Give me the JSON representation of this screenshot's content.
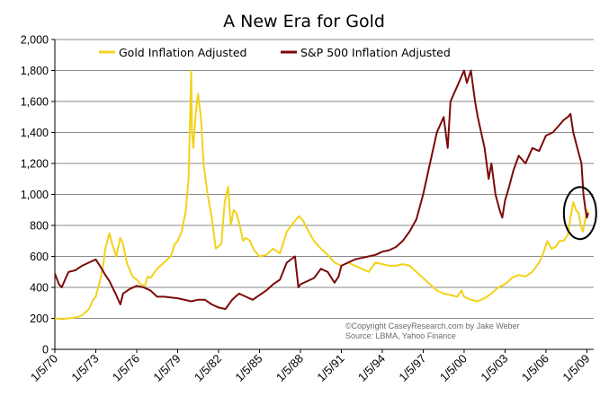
{
  "chart_data": {
    "type": "line",
    "title": "A New Era for Gold",
    "xlabel": "",
    "ylabel": "",
    "ylim": [
      0,
      2000
    ],
    "y_ticks": [
      "0",
      "200",
      "400",
      "600",
      "800",
      "1,000",
      "1,200",
      "1,400",
      "1,600",
      "1,800",
      "2,000"
    ],
    "y_tick_values": [
      0,
      200,
      400,
      600,
      800,
      1000,
      1200,
      1400,
      1600,
      1800,
      2000
    ],
    "xlim": [
      1970.0,
      2009.3
    ],
    "x_ticks": [
      "1/5/70",
      "1/5/73",
      "1/5/76",
      "1/5/79",
      "1/5/82",
      "1/5/85",
      "1/5/88",
      "1/5/91",
      "1/5/94",
      "1/5/97",
      "1/5/00",
      "1/5/03",
      "1/5/06",
      "1/5/09"
    ],
    "x_tick_values": [
      1970,
      1973,
      1976,
      1979,
      1982,
      1985,
      1988,
      1991,
      1994,
      1997,
      2000,
      2003,
      2006,
      2009
    ],
    "grid": "horizontal",
    "legend_position": "top",
    "series": [
      {
        "name": "Gold Inflation Adjusted",
        "color": "#f2d21b",
        "x": [
          1970.0,
          1970.5,
          1971.0,
          1971.5,
          1972.0,
          1972.5,
          1972.8,
          1973.0,
          1973.3,
          1973.5,
          1973.7,
          1974.0,
          1974.2,
          1974.5,
          1974.8,
          1975.0,
          1975.3,
          1975.7,
          1976.0,
          1976.3,
          1976.6,
          1976.8,
          1977.0,
          1977.5,
          1978.0,
          1978.5,
          1978.8,
          1979.0,
          1979.3,
          1979.6,
          1979.8,
          1980.0,
          1980.05,
          1980.15,
          1980.3,
          1980.5,
          1980.7,
          1980.9,
          1981.2,
          1981.5,
          1981.8,
          1982.2,
          1982.45,
          1982.7,
          1982.9,
          1983.1,
          1983.3,
          1983.5,
          1983.8,
          1984.0,
          1984.3,
          1984.6,
          1985.0,
          1985.5,
          1986.0,
          1986.5,
          1987.0,
          1987.5,
          1987.9,
          1988.2,
          1988.6,
          1989.0,
          1989.5,
          1990.0,
          1990.5,
          1991.0,
          1991.5,
          1992.0,
          1992.5,
          1993.0,
          1993.5,
          1994.0,
          1994.5,
          1995.0,
          1995.5,
          1996.0,
          1996.5,
          1997.0,
          1997.5,
          1998.0,
          1998.5,
          1999.0,
          1999.5,
          1999.8,
          2000.0,
          2000.5,
          2001.0,
          2001.5,
          2002.0,
          2002.5,
          2003.0,
          2003.5,
          2004.0,
          2004.5,
          2005.0,
          2005.5,
          2005.8,
          2006.1,
          2006.4,
          2006.7,
          2007.0,
          2007.3,
          2007.6,
          2007.8,
          2008.0,
          2008.2,
          2008.4,
          2008.55,
          2008.7,
          2008.85,
          2009.0,
          2009.1
        ],
        "values": [
          200,
          195,
          200,
          205,
          220,
          260,
          320,
          340,
          440,
          520,
          650,
          750,
          680,
          600,
          720,
          680,
          550,
          470,
          450,
          420,
          410,
          470,
          460,
          520,
          560,
          600,
          680,
          700,
          760,
          900,
          1100,
          1800,
          1400,
          1300,
          1500,
          1650,
          1500,
          1200,
          1000,
          850,
          650,
          680,
          950,
          1050,
          800,
          900,
          880,
          820,
          700,
          720,
          700,
          640,
          600,
          610,
          650,
          620,
          760,
          820,
          860,
          830,
          760,
          700,
          650,
          610,
          560,
          540,
          560,
          540,
          520,
          500,
          560,
          550,
          540,
          540,
          550,
          540,
          500,
          460,
          420,
          380,
          360,
          350,
          340,
          380,
          340,
          320,
          310,
          330,
          360,
          400,
          420,
          460,
          480,
          470,
          500,
          560,
          620,
          700,
          650,
          660,
          700,
          700,
          740,
          850,
          950,
          900,
          880,
          800,
          760,
          820,
          900,
          880
        ]
      },
      {
        "name": "S&P 500 Inflation Adjusted",
        "color": "#7c0a0a",
        "x": [
          1970.0,
          1970.3,
          1970.5,
          1970.8,
          1971.0,
          1971.5,
          1972.0,
          1972.5,
          1973.0,
          1973.3,
          1973.7,
          1974.0,
          1974.5,
          1974.8,
          1975.0,
          1975.5,
          1976.0,
          1976.5,
          1977.0,
          1977.5,
          1978.0,
          1979.0,
          1980.0,
          1980.5,
          1981.0,
          1981.5,
          1982.0,
          1982.5,
          1983.0,
          1983.5,
          1984.0,
          1984.5,
          1985.0,
          1985.5,
          1986.0,
          1986.5,
          1987.0,
          1987.6,
          1987.85,
          1988.0,
          1988.5,
          1989.0,
          1989.5,
          1990.0,
          1990.5,
          1990.8,
          1991.0,
          1991.5,
          1992.0,
          1992.5,
          1993.0,
          1993.5,
          1994.0,
          1994.5,
          1995.0,
          1995.5,
          1996.0,
          1996.5,
          1997.0,
          1997.5,
          1998.0,
          1998.5,
          1998.8,
          1999.0,
          1999.5,
          2000.0,
          2000.2,
          2000.5,
          2000.8,
          2001.0,
          2001.5,
          2001.8,
          2002.0,
          2002.3,
          2002.6,
          2002.8,
          2003.0,
          2003.3,
          2003.6,
          2004.0,
          2004.5,
          2005.0,
          2005.5,
          2006.0,
          2006.5,
          2007.0,
          2007.3,
          2007.6,
          2007.8,
          2008.0,
          2008.3,
          2008.6,
          2008.75,
          2008.9,
          2009.0,
          2009.1
        ],
        "values": [
          490,
          420,
          400,
          460,
          500,
          510,
          540,
          560,
          580,
          540,
          480,
          440,
          350,
          290,
          360,
          390,
          410,
          400,
          380,
          340,
          340,
          330,
          310,
          320,
          320,
          290,
          270,
          260,
          320,
          360,
          340,
          320,
          350,
          380,
          420,
          450,
          560,
          600,
          400,
          420,
          440,
          460,
          520,
          500,
          430,
          470,
          540,
          560,
          580,
          590,
          600,
          610,
          630,
          640,
          660,
          700,
          760,
          840,
          1000,
          1200,
          1400,
          1500,
          1300,
          1600,
          1700,
          1800,
          1720,
          1800,
          1600,
          1500,
          1300,
          1100,
          1200,
          1000,
          900,
          850,
          960,
          1050,
          1150,
          1250,
          1200,
          1300,
          1280,
          1380,
          1400,
          1450,
          1480,
          1500,
          1520,
          1400,
          1300,
          1200,
          1000,
          900,
          850,
          880
        ]
      }
    ],
    "annotations": [
      "©Copyright CaseyResearch.com by Jake Weber",
      "Source: LBMA, Yahoo Finance"
    ],
    "highlight": {
      "label": "circled region",
      "x_range": [
        2007.7,
        2009.3
      ],
      "y_center": 880
    }
  }
}
